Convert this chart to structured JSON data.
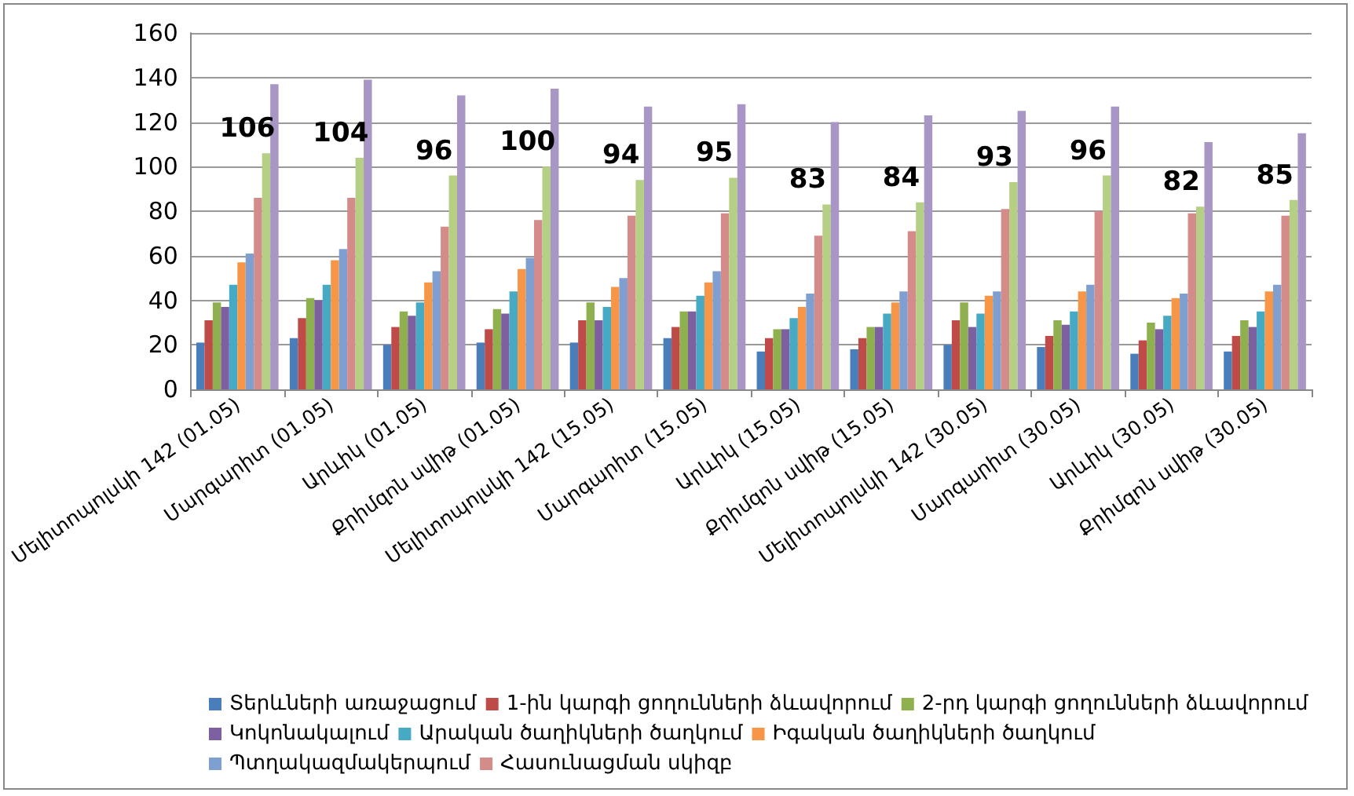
{
  "chart_data": {
    "type": "bar",
    "categories": [
      "Մելիտոպոլսկի 142 (01.05)",
      "Մարգարիտ (01.05)",
      "Արևիկ (01.05)",
      "Քրիմզոն սվիթ (01.05)",
      "Մելիտոպոլսկի 142 (15.05)",
      "Մարգարիտ (15.05)",
      "Արևիկ (15.05)",
      "Քրիմզոն սվիթ (15.05)",
      "Մելիտոպոլսկի 142 (30.05)",
      "Մարգարիտ (30.05)",
      "Արևիկ (30.05)",
      "Քրիմզոն սվիթ (30.05)"
    ],
    "series": [
      {
        "name": "Տերևների առաջացում",
        "color": "#4a7ebb",
        "values": [
          21,
          23,
          20,
          21,
          21,
          23,
          17,
          18,
          20,
          19,
          16,
          17
        ]
      },
      {
        "name": "1-ին կարգի ցողունների ձևավորում",
        "color": "#be4b48",
        "values": [
          31,
          32,
          28,
          27,
          31,
          28,
          23,
          23,
          31,
          24,
          22,
          24
        ]
      },
      {
        "name": "2-րդ կարգի ցողունների ձևավորում",
        "color": "#8fb04e",
        "values": [
          39,
          41,
          35,
          36,
          39,
          35,
          27,
          28,
          39,
          31,
          30,
          31
        ]
      },
      {
        "name": "Կոկոնակալում",
        "color": "#7d60a0",
        "values": [
          37,
          40,
          33,
          34,
          31,
          35,
          27,
          28,
          28,
          29,
          27,
          28
        ]
      },
      {
        "name": "Արական ծաղիկների ծաղկում",
        "color": "#46aac5",
        "values": [
          47,
          47,
          39,
          44,
          37,
          42,
          32,
          34,
          34,
          35,
          33,
          35
        ]
      },
      {
        "name": "Իգական ծաղիկների ծաղկում",
        "color": "#f79646",
        "values": [
          57,
          58,
          48,
          54,
          46,
          48,
          37,
          39,
          42,
          44,
          41,
          44
        ]
      },
      {
        "name": "Պտղակազմակերպում",
        "color": "#7f9fd0",
        "values": [
          61,
          63,
          53,
          59,
          50,
          53,
          43,
          44,
          44,
          47,
          43,
          47
        ]
      },
      {
        "name": "Հասունացման սկիզբ",
        "color": "#d48c8a",
        "values": [
          86,
          86,
          73,
          76,
          78,
          79,
          69,
          71,
          81,
          80,
          79,
          78
        ]
      },
      {
        "color": "#b5cf84",
        "values": [
          106,
          104,
          96,
          100,
          94,
          95,
          83,
          84,
          93,
          96,
          82,
          85
        ],
        "value_labels": [
          "106",
          "104",
          "96",
          "100",
          "94",
          "95",
          "83",
          "84",
          "93",
          "96",
          "82",
          "85"
        ]
      },
      {
        "color": "#a896c4",
        "values": [
          137,
          139,
          132,
          135,
          127,
          128,
          120,
          123,
          125,
          127,
          111,
          115
        ]
      }
    ],
    "ylim": [
      0,
      160
    ],
    "yticks": [
      0,
      20,
      40,
      60,
      80,
      100,
      120,
      140,
      160
    ],
    "grid": "y",
    "legend": "bottom"
  }
}
